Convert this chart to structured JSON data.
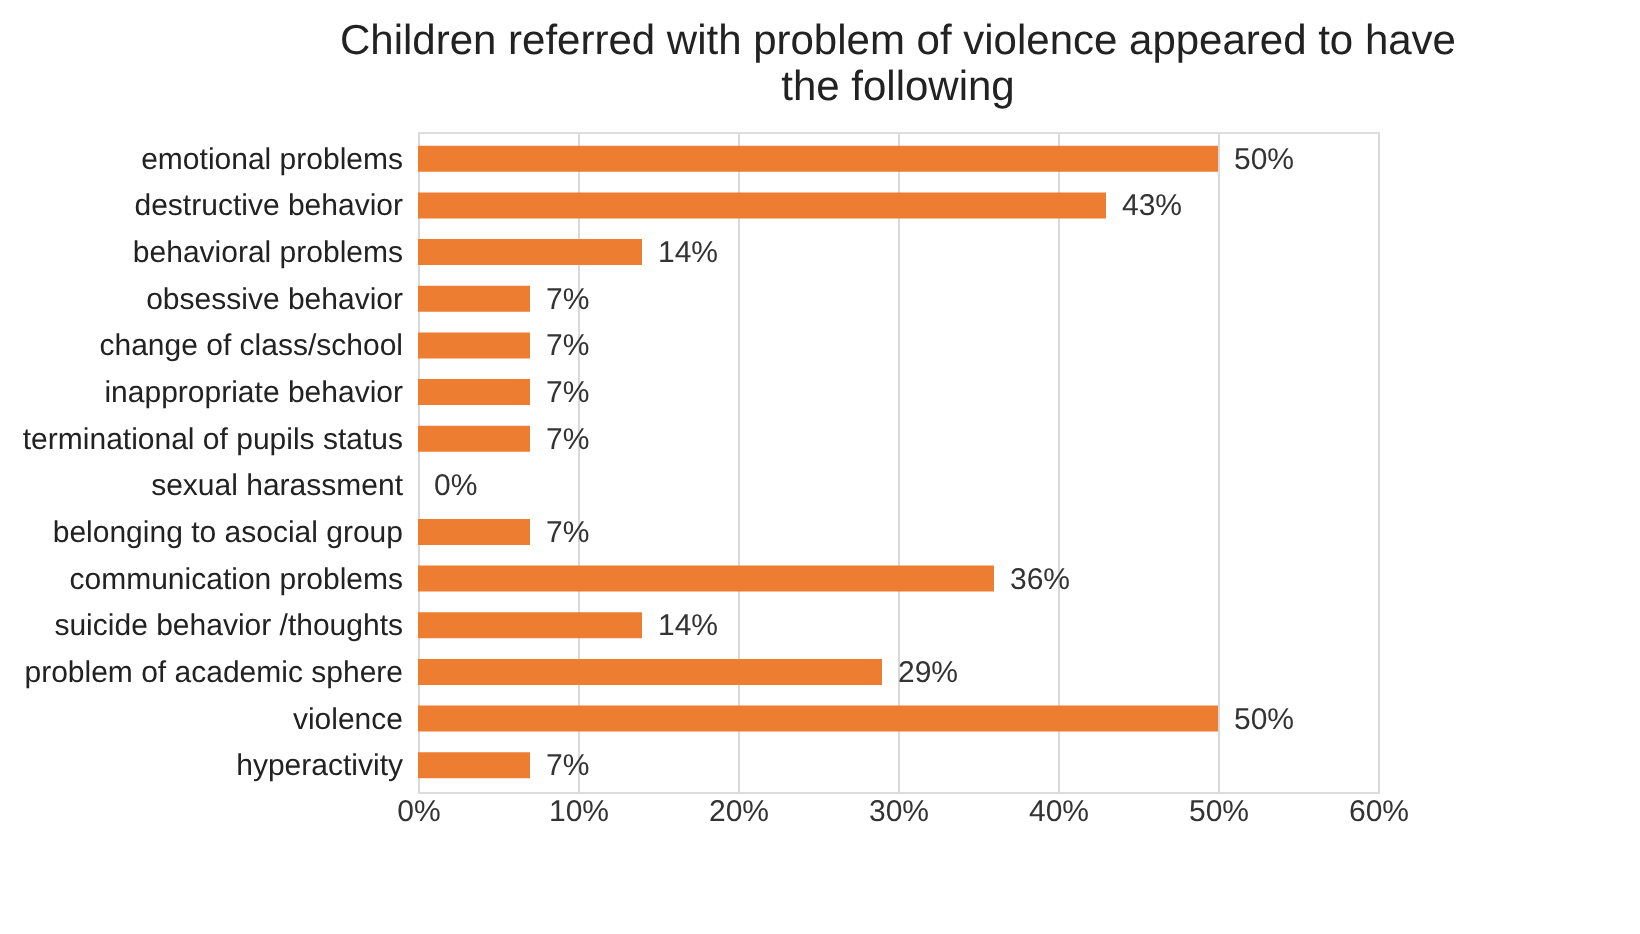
{
  "chart_data": {
    "type": "bar",
    "orientation": "horizontal",
    "title": "Children referred with problem of violence appeared to have the following",
    "categories": [
      "emotional problems",
      "destructive behavior",
      "behavioral problems",
      "obsessive behavior",
      "change of class/school",
      "inappropriate behavior",
      "terminational of pupils status",
      "sexual harassment",
      "belonging to asocial group",
      "communication problems",
      "suicide behavior /thoughts",
      "problem of academic sphere",
      "violence",
      "hyperactivity"
    ],
    "values": [
      50,
      43,
      14,
      7,
      7,
      7,
      7,
      0,
      7,
      36,
      14,
      29,
      50,
      7
    ],
    "value_labels": [
      "50%",
      "43%",
      "14%",
      "7%",
      "7%",
      "7%",
      "7%",
      "0%",
      "7%",
      "36%",
      "14%",
      "29%",
      "50%",
      "7%"
    ],
    "color": "#ed7d31",
    "xlim": [
      0,
      60
    ],
    "xticks": [
      {
        "value": 0,
        "label": "0%"
      },
      {
        "value": 10,
        "label": "10%"
      },
      {
        "value": 20,
        "label": "20%"
      },
      {
        "value": 30,
        "label": "30%"
      },
      {
        "value": 40,
        "label": "40%"
      },
      {
        "value": 50,
        "label": "50%"
      },
      {
        "value": 60,
        "label": "60%"
      }
    ],
    "grid": "x"
  }
}
